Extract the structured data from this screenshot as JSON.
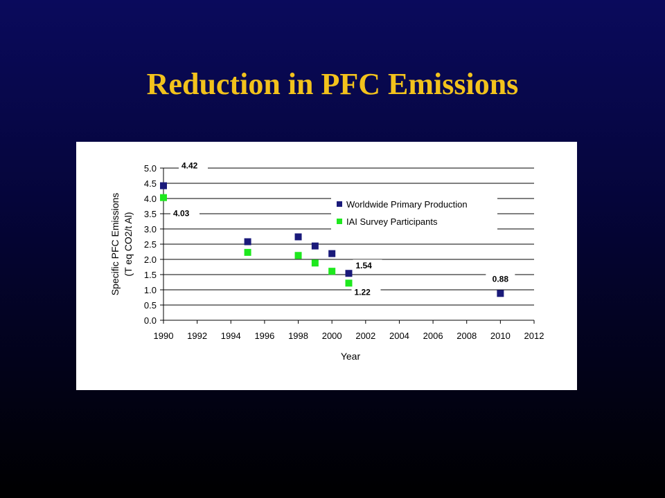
{
  "slide": {
    "title": "Reduction in PFC Emissions"
  },
  "chart_data": {
    "type": "scatter",
    "title": "",
    "xlabel": "Year",
    "ylabel_line1": "Specific PFC Emissions",
    "ylabel_line2": "(T eq CO2/t Al)",
    "xlim": [
      1990,
      2012
    ],
    "ylim": [
      0,
      5
    ],
    "x_ticks": [
      "1990",
      "1992",
      "1994",
      "1996",
      "1998",
      "2000",
      "2002",
      "2004",
      "2006",
      "2008",
      "2010",
      "2012"
    ],
    "y_ticks": [
      "0.0",
      "0.5",
      "1.0",
      "1.5",
      "2.0",
      "2.5",
      "3.0",
      "3.5",
      "4.0",
      "4.5",
      "5.0"
    ],
    "grid": "horizontal",
    "legend_position": "upper-right",
    "series": [
      {
        "name": "Worldwide Primary Production",
        "color": "#1a1a7a",
        "marker": "square",
        "points": [
          {
            "x": 1990,
            "y": 4.42
          },
          {
            "x": 1995,
            "y": 2.58
          },
          {
            "x": 1998,
            "y": 2.74
          },
          {
            "x": 1999,
            "y": 2.44
          },
          {
            "x": 2000,
            "y": 2.19
          },
          {
            "x": 2001,
            "y": 1.54
          },
          {
            "x": 2010,
            "y": 0.88
          }
        ]
      },
      {
        "name": "IAI Survey Participants",
        "color": "#1ee81e",
        "marker": "square",
        "points": [
          {
            "x": 1990,
            "y": 4.03
          },
          {
            "x": 1995,
            "y": 2.23
          },
          {
            "x": 1998,
            "y": 2.13
          },
          {
            "x": 1999,
            "y": 1.88
          },
          {
            "x": 2000,
            "y": 1.61
          },
          {
            "x": 2001,
            "y": 1.22
          }
        ]
      }
    ],
    "annotations": [
      {
        "text": "4.42",
        "x": 1990,
        "y": 4.42,
        "series": 0
      },
      {
        "text": "4.03",
        "x": 1990,
        "y": 4.03,
        "series": 1
      },
      {
        "text": "1.54",
        "x": 2001,
        "y": 1.54,
        "series": 0
      },
      {
        "text": "1.22",
        "x": 2001,
        "y": 1.22,
        "series": 1
      },
      {
        "text": "0.88",
        "x": 2010,
        "y": 0.88,
        "series": 0
      }
    ]
  }
}
